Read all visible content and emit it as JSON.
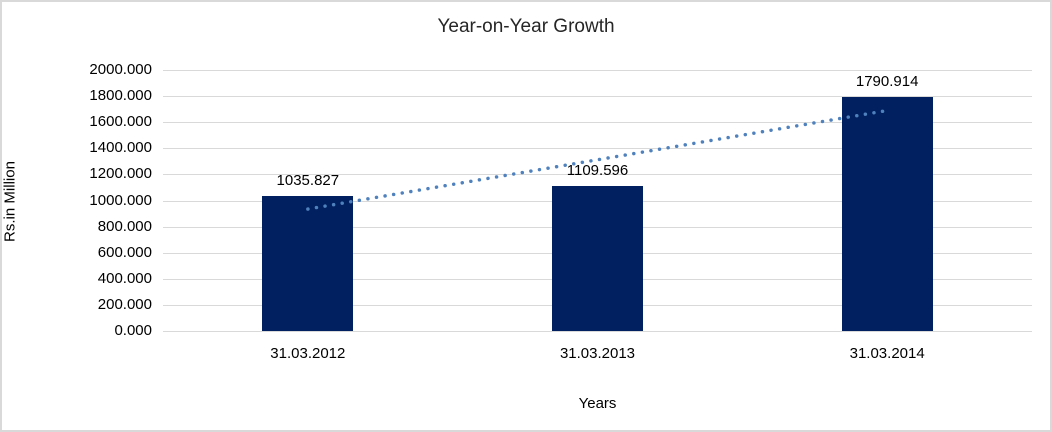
{
  "chart_data": {
    "type": "bar",
    "title": "Year-on-Year Growth",
    "xlabel": "Years",
    "ylabel": "Rs.in Million",
    "categories": [
      "31.03.2012",
      "31.03.2013",
      "31.03.2014"
    ],
    "values": [
      1035.827,
      1109.596,
      1790.914
    ],
    "data_labels": [
      "1035.827",
      "1109.596",
      "1790.914"
    ],
    "ylim": [
      0,
      2000
    ],
    "ytick_step": 200,
    "ytick_labels": [
      "0.000",
      "200.000",
      "400.000",
      "600.000",
      "800.000",
      "1000.000",
      "1200.000",
      "1400.000",
      "1600.000",
      "1800.000",
      "2000.000"
    ],
    "grid": true,
    "legend_position": "none",
    "colors": {
      "bar": "#002060",
      "trendline": "#4f81bd",
      "gridline": "#d9d9d9",
      "text": "#000000",
      "title_text": "#262626",
      "border": "#d9d9d9",
      "background": "#ffffff"
    },
    "trendline": {
      "kind": "linear",
      "style": "dotted"
    }
  }
}
